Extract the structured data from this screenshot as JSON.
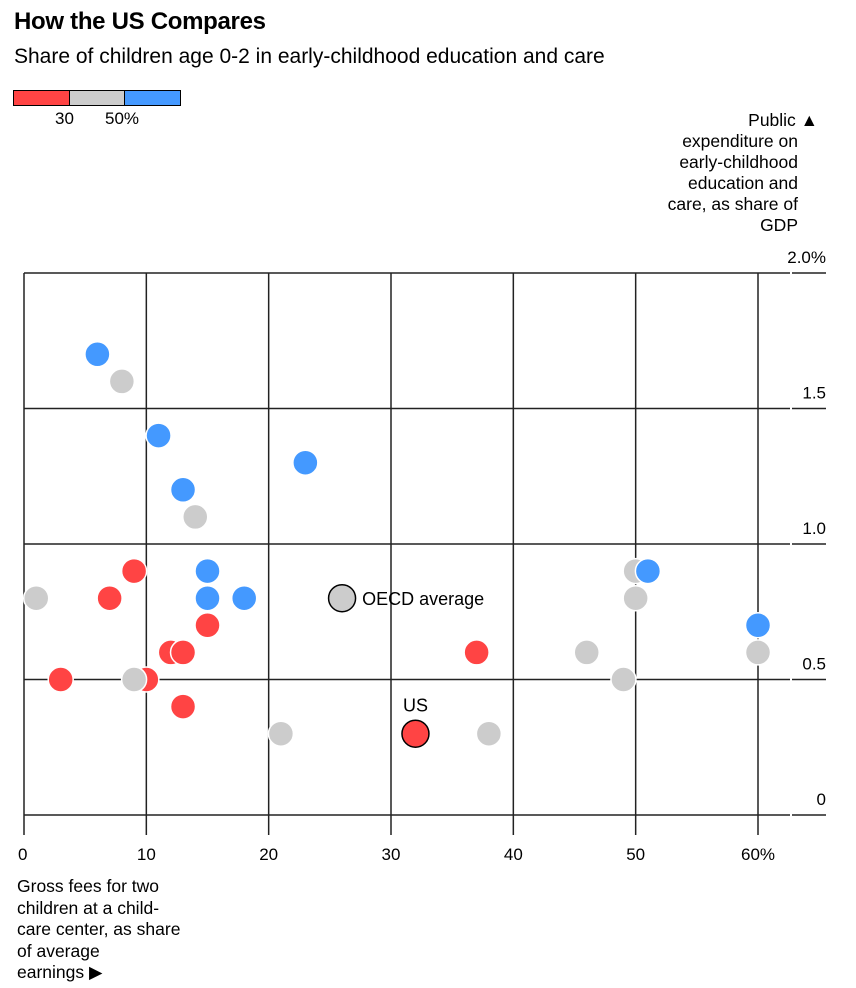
{
  "header": {
    "title": "How the US Compares",
    "subtitle": "Share of children age 0-2 in early-childhood education and care"
  },
  "legend": {
    "colors": [
      "#ff4444",
      "#cccccc",
      "#4499ff"
    ],
    "labels": [
      "30",
      "50%"
    ],
    "bins": [
      "< 30%",
      "30-50%",
      "> 50%"
    ]
  },
  "chart_data": {
    "type": "scatter",
    "title": "How the US Compares",
    "subtitle": "Share of children age 0-2 in early-childhood education and care",
    "xlabel": "Gross fees for two children at a child-care center, as share of average earnings ▶",
    "ylabel": "Public ▲ expenditure on early-childhood education and care, as share of GDP",
    "xlabel_lines": [
      "Gross fees for two",
      "children at a child-",
      "care center, as share",
      "of average",
      "earnings ▶"
    ],
    "ylabel_lines": [
      "Public ▲",
      "expenditure on",
      "early-childhood",
      "education and",
      "care, as share of",
      "GDP"
    ],
    "xlim": [
      0,
      65
    ],
    "ylim": [
      0,
      2.0
    ],
    "xticks": [
      0,
      10,
      20,
      30,
      40,
      50,
      60
    ],
    "xtick_labels": [
      "0",
      "10",
      "20",
      "30",
      "40",
      "50",
      "60%"
    ],
    "yticks": [
      0,
      0.5,
      1.0,
      1.5,
      2.0
    ],
    "ytick_labels": [
      "0",
      "0.5",
      "1.0",
      "1.5",
      "2.0%"
    ],
    "grid": true,
    "color_encoding": "Share of children age 0-2 in early-childhood education and care",
    "series": [
      {
        "name": "Under 30%",
        "color": "#ff4444",
        "points": [
          {
            "x": 9,
            "y": 0.9
          },
          {
            "x": 7,
            "y": 0.8
          },
          {
            "x": 15,
            "y": 0.7
          },
          {
            "x": 12,
            "y": 0.6
          },
          {
            "x": 13,
            "y": 0.6
          },
          {
            "x": 3,
            "y": 0.5
          },
          {
            "x": 10,
            "y": 0.5
          },
          {
            "x": 13,
            "y": 0.4
          },
          {
            "x": 37,
            "y": 0.6
          }
        ]
      },
      {
        "name": "30-50%",
        "color": "#cccccc",
        "points": [
          {
            "x": 8,
            "y": 1.6
          },
          {
            "x": 14,
            "y": 1.1
          },
          {
            "x": 1,
            "y": 0.8
          },
          {
            "x": 9,
            "y": 0.5
          },
          {
            "x": 21,
            "y": 0.3
          },
          {
            "x": 38,
            "y": 0.3
          },
          {
            "x": 50,
            "y": 0.9
          },
          {
            "x": 50,
            "y": 0.8
          },
          {
            "x": 46,
            "y": 0.6
          },
          {
            "x": 49,
            "y": 0.5
          },
          {
            "x": 60,
            "y": 0.6
          }
        ]
      },
      {
        "name": "Over 50%",
        "color": "#4499ff",
        "points": [
          {
            "x": 6,
            "y": 1.7
          },
          {
            "x": 11,
            "y": 1.4
          },
          {
            "x": 13,
            "y": 1.2
          },
          {
            "x": 23,
            "y": 1.3
          },
          {
            "x": 15,
            "y": 0.9
          },
          {
            "x": 15,
            "y": 0.8
          },
          {
            "x": 18,
            "y": 0.8
          },
          {
            "x": 51,
            "y": 0.9
          },
          {
            "x": 60,
            "y": 0.7
          }
        ]
      }
    ],
    "highlighted": [
      {
        "label": "OECD average",
        "x": 26,
        "y": 0.8,
        "color": "#cccccc",
        "label_position": "right"
      },
      {
        "label": "US",
        "x": 32,
        "y": 0.3,
        "color": "#ff4444",
        "label_position": "top"
      }
    ]
  }
}
